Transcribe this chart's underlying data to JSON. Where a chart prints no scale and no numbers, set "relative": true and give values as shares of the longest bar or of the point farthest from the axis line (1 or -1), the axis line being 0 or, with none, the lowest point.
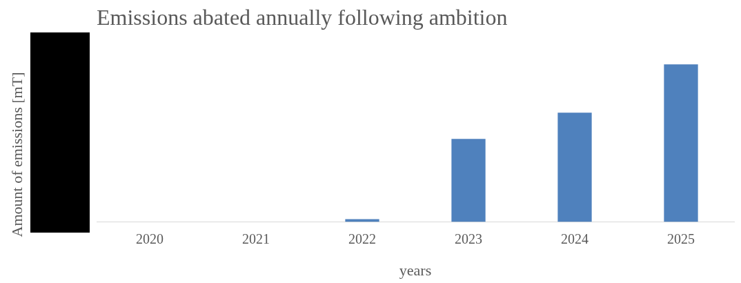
{
  "chart_data": {
    "type": "bar",
    "title": "Emissions abated annually following ambition",
    "xlabel": "years",
    "ylabel": "Amount of emissions [mT]",
    "relative": true,
    "categories": [
      "2020",
      "2021",
      "2022",
      "2023",
      "2024",
      "2025"
    ],
    "values": [
      0,
      0,
      0.018,
      0.527,
      0.694,
      1
    ],
    "color": "#4f81bd",
    "grid": false,
    "legend": false
  }
}
